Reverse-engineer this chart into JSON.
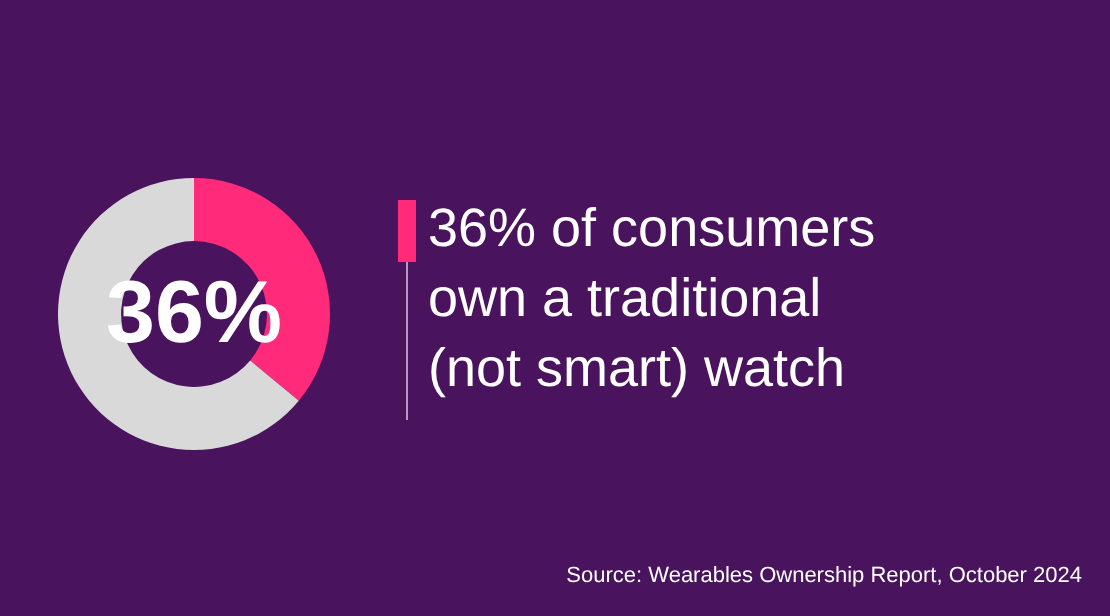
{
  "chart_data": {
    "type": "donut",
    "title": "36% of consumers own a traditional (not smart) watch",
    "categories": [
      null,
      null
    ],
    "values": [
      36,
      64
    ],
    "colors": [
      "#ff2a7a",
      "#d9d9d9"
    ],
    "value_labels": [
      "36%",
      null
    ],
    "annotations": [
      "Source: Wearables Ownership Report, October 2024"
    ]
  }
}
